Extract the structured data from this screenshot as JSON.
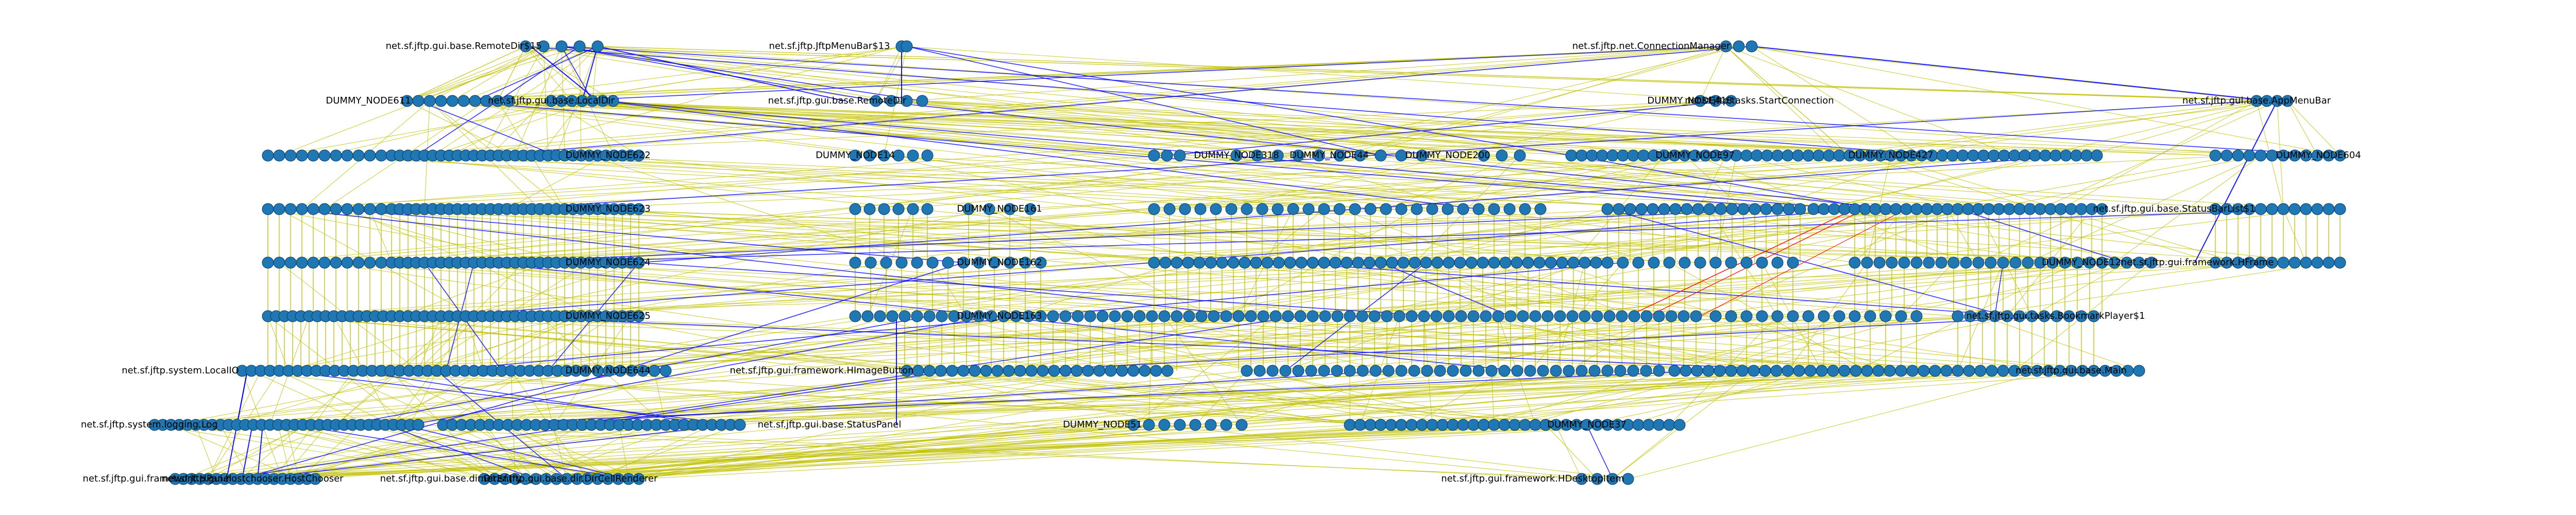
{
  "colors": {
    "node_fill": "#1f77b4",
    "node_stroke": "#0d3a66",
    "edge_default": "#bfbf00",
    "edge_highlight": "#0000ff",
    "edge_alert": "#ff0000",
    "label": "#000000",
    "background": "#ffffff"
  },
  "labels": [
    "net.sf.jftp.gui.base.RemoteDir$15",
    "net.sf.jftp.JftpMenuBar$13",
    "net.sf.jftp.net.ConnectionManager",
    "DUMMY_NODE611",
    "net.sf.jftp.gui.base.LocalDir",
    "net.sf.jftp.gui.base.RemoteDir",
    "DUMMY_NODE418",
    "net.sf.jftp.tasks.StartConnection",
    "net.sf.jftp.gui.base.AppMenuBar",
    "DUMMY_NODE622",
    "DUMMY_NODE14",
    "DUMMY_NODE318",
    "DUMMY_NODE44",
    "DUMMY_NODE200",
    "DUMMY_NODE97",
    "DUMMY_NODE427",
    "DUMMY_NODE604",
    "DUMMY_NODE623",
    "DUMMY_NODE161",
    "net.sf.jftp.gui.base.StatusBarList$1",
    "DUMMY_NODE624",
    "DUMMY_NODE162",
    "DUMMY_NODE12",
    "net.sf.jftp.gui.framework.HFrame",
    "DUMMY_NODE625",
    "DUMMY_NODE163",
    "net.sf.jftp.gui.tasks.BookmarkPlayer$1",
    "net.sf.jftp.system.LocalIO",
    "DUMMY_NODE644",
    "net.sf.jftp.gui.framework.HImageButton",
    "net.sf.jftp.gui.base.Main",
    "net.sf.jftp.gui.base.StatusPanel",
    "DUMMY_NODE51",
    "DUMMY_NODE37",
    "net.sf.jftp.system.logging.Log",
    "net.sf.jftp.gui.framework.HPanel",
    "net.sf.jftp.gui.hostchooser.HostChooser",
    "net.sf.jftp.gui.base.dir.DirEntry",
    "net.sf.jftp.gui.base.dir.DirCellRenderer",
    "net.sf.jftp.gui.framework.HDesktopItem"
  ]
}
